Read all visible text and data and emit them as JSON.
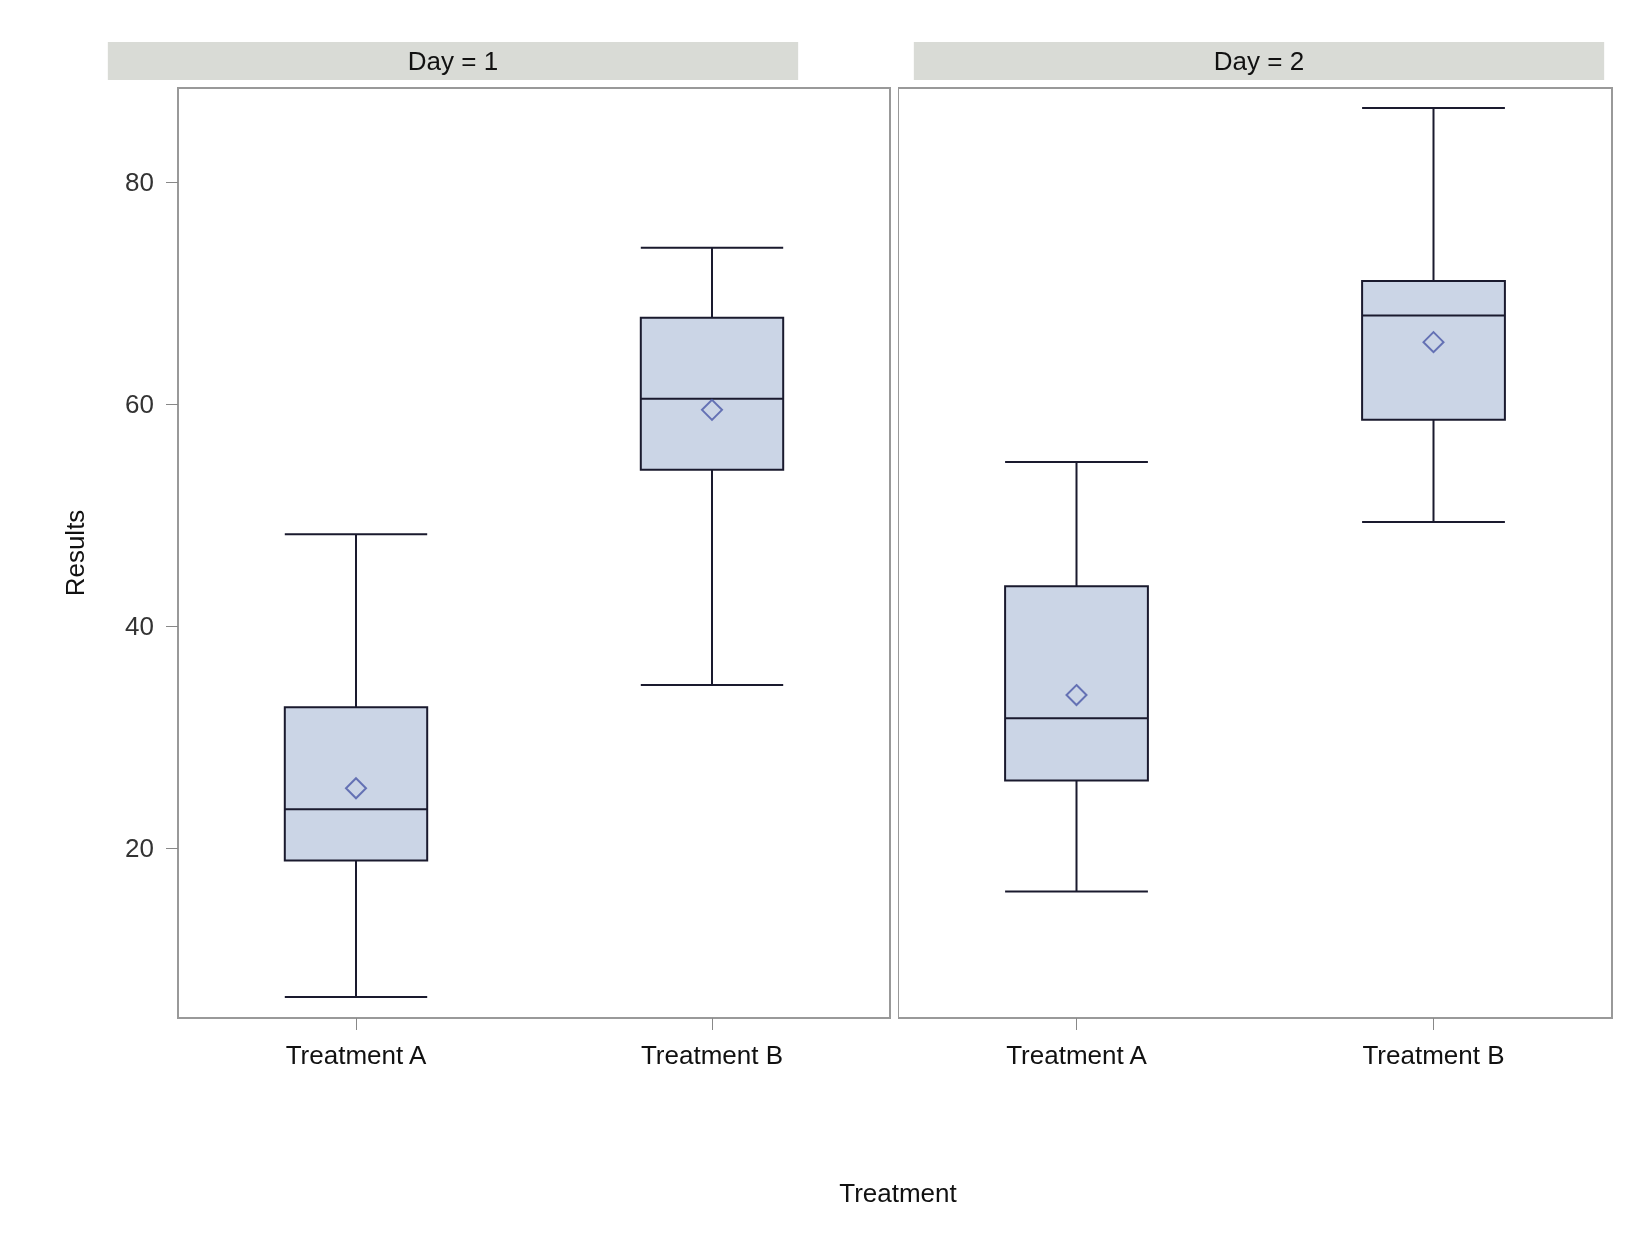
{
  "chart_data": [
    {
      "type": "box",
      "title": "Day = 1",
      "ylabel": "Results",
      "xlabel": "Treatment",
      "categories": [
        "Treatment A",
        "Treatment B"
      ],
      "ylim": [
        4.7,
        88.5
      ],
      "yticks": [
        20,
        40,
        60,
        80
      ],
      "grid": false,
      "marker": "diamond",
      "series": [
        {
          "color": "#cbd5e6",
          "boxes": [
            {
              "low": 6.6,
              "q1": 18.9,
              "median": 23.5,
              "q3": 32.7,
              "high": 48.3,
              "mean": 25.4
            },
            {
              "low": 34.7,
              "q1": 54.1,
              "median": 60.5,
              "q3": 67.8,
              "high": 74.1,
              "mean": 59.5
            }
          ]
        }
      ]
    },
    {
      "type": "box",
      "title": "Day = 2",
      "categories": [
        "Treatment A",
        "Treatment B"
      ],
      "ylim": [
        4.7,
        88.5
      ],
      "yticks": [
        20,
        40,
        60,
        80
      ],
      "grid": false,
      "marker": "diamond",
      "tick_labels": "x",
      "series": [
        {
          "color": "#cbd5e6",
          "boxes": [
            {
              "low": 16.1,
              "q1": 26.1,
              "median": 31.7,
              "q3": 43.6,
              "high": 54.8,
              "mean": 33.8
            },
            {
              "low": 49.4,
              "q1": 58.6,
              "median": 68.0,
              "q3": 71.1,
              "high": 86.7,
              "mean": 65.6
            }
          ]
        }
      ]
    }
  ]
}
